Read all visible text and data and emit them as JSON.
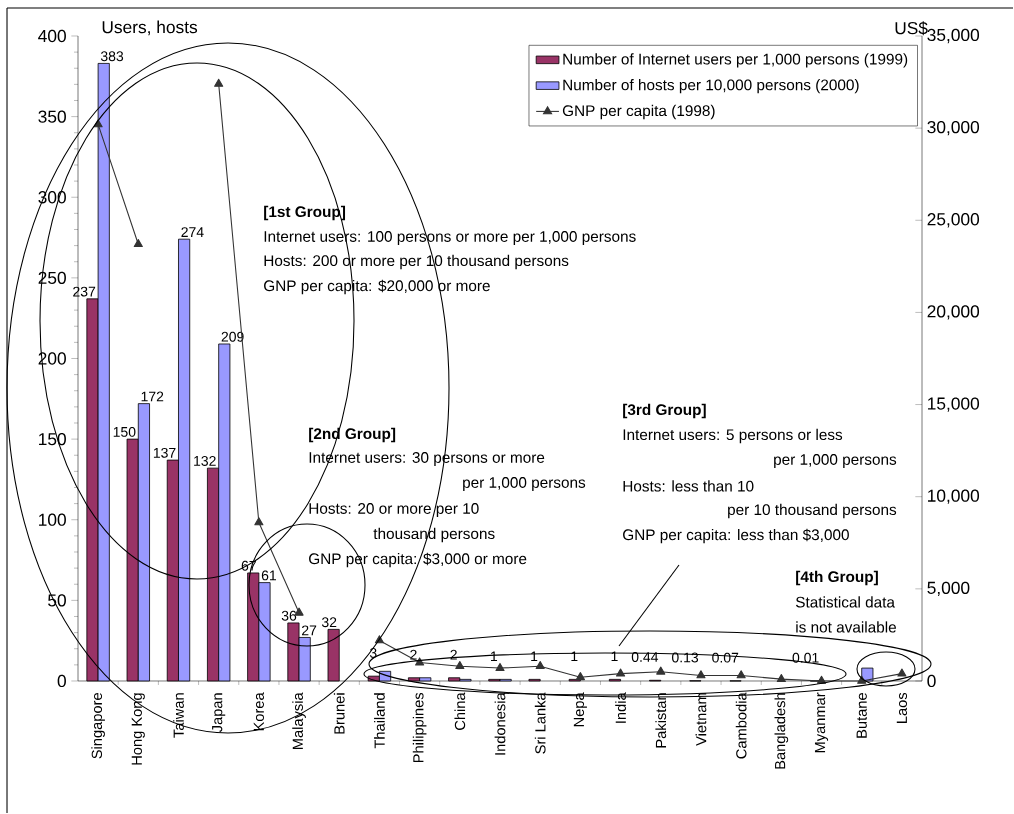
{
  "chart_data": {
    "type": "bar",
    "categories": [
      "Singapore",
      "Hong Kong",
      "Taiwan",
      "Japan",
      "Korea",
      "Malaysia",
      "Brunei",
      "Thailand",
      "Philippines",
      "China",
      "Indonesia",
      "Sri Lanka",
      "Nepa",
      "India",
      "Pakistan",
      "Vietnam",
      "Cambodia",
      "Bangladesh",
      "Myanmar",
      "Butane",
      "Laos"
    ],
    "ylabel": "Users, hosts",
    "y2label": "US$",
    "ylim": [
      0,
      400
    ],
    "yticks": [
      0,
      50,
      100,
      150,
      200,
      250,
      300,
      350,
      400
    ],
    "y2lim": [
      0,
      35000
    ],
    "y2ticks": [
      {
        "value": 0,
        "label": "0"
      },
      {
        "value": 5000,
        "label": "5,000"
      },
      {
        "value": 10000,
        "label": "10,000"
      },
      {
        "value": 15000,
        "label": "15,000"
      },
      {
        "value": 20000,
        "label": "20,000"
      },
      {
        "value": 25000,
        "label": "25,000"
      },
      {
        "value": 30000,
        "label": "30,000"
      },
      {
        "value": 35000,
        "label": "35,000"
      }
    ],
    "legend": "top right",
    "series": [
      {
        "name": "Number of Internet users per 1,000 persons (1999)",
        "color": "#993366",
        "values": [
          237,
          150,
          137,
          132,
          67,
          36,
          32,
          3,
          2,
          2,
          1,
          1,
          1,
          1,
          0.44,
          0.13,
          0.07,
          null,
          0.01,
          null,
          null
        ],
        "value_labels": [
          "237",
          "150",
          "137",
          "132",
          "67",
          "36",
          "32",
          "3",
          "2",
          "2",
          "1",
          "1",
          "1",
          "1",
          "0.44",
          "0.13",
          "0.07",
          null,
          "0.01",
          null,
          null
        ]
      },
      {
        "name": "Number of hosts per 10,000 persons (2000)",
        "color": "#9999ff",
        "values": [
          383,
          172,
          274,
          209,
          61,
          27,
          null,
          6,
          2,
          1,
          1,
          null,
          null,
          null,
          null,
          null,
          null,
          null,
          null,
          8,
          null
        ],
        "value_labels": [
          "383",
          "172",
          "274",
          "209",
          "61",
          "27",
          null,
          null,
          null,
          null,
          null,
          null,
          null,
          null,
          null,
          null,
          null,
          null,
          null,
          null,
          null
        ]
      },
      {
        "name": "GNP per capita (1998)",
        "type": "line",
        "axis": "y2",
        "color": "#333333",
        "marker": "triangle",
        "values": [
          30200,
          23700,
          null,
          32400,
          8600,
          3700,
          null,
          2200,
          1000,
          800,
          700,
          800,
          200,
          400,
          500,
          300,
          300,
          100,
          0,
          0,
          400
        ]
      }
    ],
    "annotations": [
      "[1st Group]",
      "Internet users: 100 persons or more per 1,000 persons",
      "Hosts: 200 or more per 10 thousand persons",
      "GNP per capita: $20,000 or more",
      "[2nd Group]",
      "Internet users: 30 persons or more",
      "per 1,000 persons",
      "Hosts: 20 or more per 10",
      "thousand persons",
      "GNP per capita: $3,000 or more",
      "[3rd Group]",
      "Internet users: 5 persons or less",
      "per 1,000 persons",
      "Hosts: less than 10",
      "per 10 thousand persons",
      "GNP per capita: less than $3,000",
      "[4th Group]",
      "Statistical data",
      "is not available"
    ]
  }
}
